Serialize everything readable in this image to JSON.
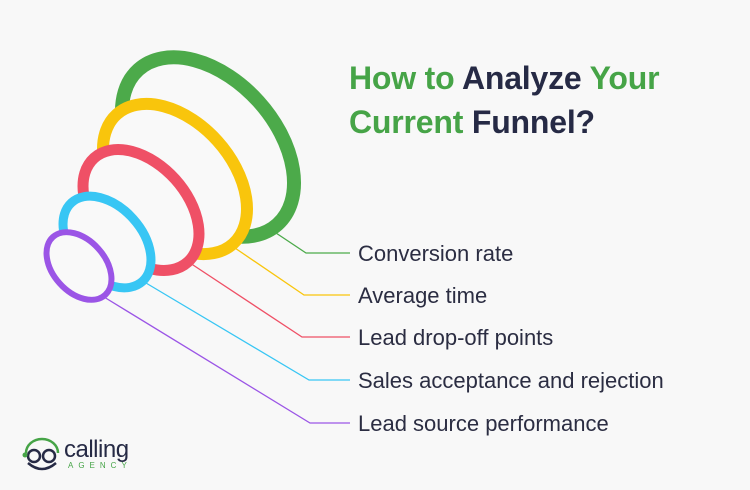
{
  "title": {
    "line1": [
      {
        "text": "How to ",
        "accent": true
      },
      {
        "text": "Analyze ",
        "accent": false
      },
      {
        "text": "Your",
        "accent": true
      }
    ],
    "line2": [
      {
        "text": "Current ",
        "accent": true
      },
      {
        "text": "Funnel?",
        "accent": false
      }
    ]
  },
  "colors": {
    "accent": "#46a447",
    "text": "#262a45"
  },
  "funnel_items": [
    {
      "label": "Conversion rate",
      "color": "#4caa4a"
    },
    {
      "label": "Average time",
      "color": "#f9c50c"
    },
    {
      "label": "Lead drop-off points",
      "color": "#ef5066"
    },
    {
      "label": "Sales acceptance and rejection",
      "color": "#38c6f4"
    },
    {
      "label": "Lead source performance",
      "color": "#9b55e6"
    }
  ],
  "logo": {
    "name": "calling",
    "sub": "AGENCY"
  }
}
